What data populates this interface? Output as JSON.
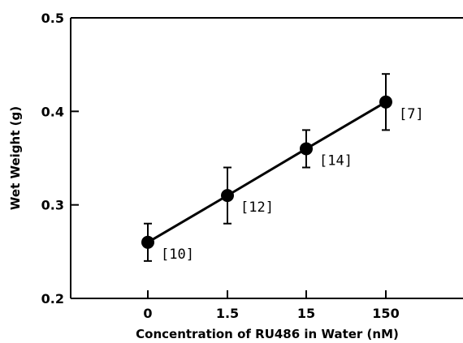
{
  "chart_data": {
    "type": "line",
    "title": "",
    "xlabel": "Concentration of RU486 in Water (nM)",
    "ylabel": "Wet Weight (g)",
    "categories": [
      "0",
      "1.5",
      "15",
      "150"
    ],
    "series": [
      {
        "values": [
          0.26,
          0.31,
          0.36,
          0.41
        ],
        "error": [
          0.02,
          0.03,
          0.02,
          0.03
        ],
        "n_labels": [
          "[10]",
          "[12]",
          "[14]",
          "[7]"
        ]
      }
    ],
    "ylim": [
      0.2,
      0.5
    ],
    "yticks": [
      0.2,
      0.3,
      0.4,
      0.5
    ],
    "ytick_labels": [
      "0.2",
      "0.3",
      "0.4",
      "0.5"
    ],
    "grid": false,
    "line_color": "#000000",
    "marker": "filled-circle"
  }
}
